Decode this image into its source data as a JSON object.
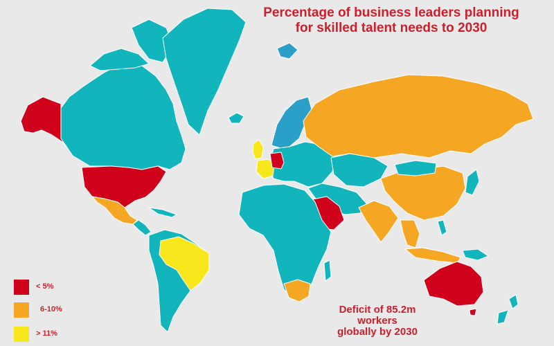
{
  "title": {
    "line1": "Percentage of business leaders planning",
    "line2": "for skilled talent needs to 2030"
  },
  "annotation": {
    "line1": "Deficit of 85.2m",
    "line2": "workers",
    "line3": "globally by 2030"
  },
  "legend": [
    {
      "label": "< 5%",
      "color": "#d0021b"
    },
    {
      "label": "6-10%",
      "color": "#f5a623"
    },
    {
      "label": "> 11%",
      "color": "#f8e71c"
    }
  ],
  "colors": {
    "default_countries": "#12b5bb",
    "scandinavia": "#2a9fc8",
    "background": "#e9e9e9",
    "title_text": "#cc1f2b"
  },
  "categories": {
    "below_5_percent": [
      "Alaska",
      "United States",
      "Germany",
      "Saudi Arabia",
      "Australia"
    ],
    "6_to_10_percent": [
      "Mexico",
      "Russia",
      "China",
      "India",
      "South Africa",
      "Southeast Asia"
    ],
    "above_11_percent": [
      "Brazil",
      "France",
      "United Kingdom"
    ]
  }
}
